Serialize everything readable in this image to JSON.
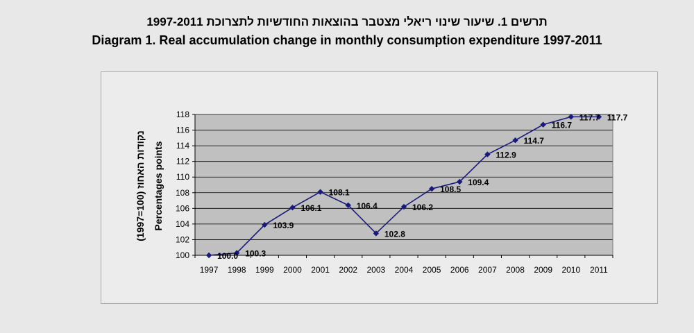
{
  "titles": {
    "hebrew": "תרשים 1. שיעור שינוי ריאלי מצטבר בהוצאות החודשיות לתצרוכת 1997-2011",
    "english": "Diagram 1. Real accumulation change in monthly consumption expenditure 1997-2011"
  },
  "chart_data": {
    "type": "line",
    "title": "Diagram 1. Real accumulation change in monthly consumption expenditure 1997-2011",
    "xlabel": "",
    "ylabel_hebrew": "נקודות האחוז (100=1997)",
    "ylabel": "Percentages points",
    "categories": [
      "1997",
      "1998",
      "1999",
      "2000",
      "2001",
      "2002",
      "2003",
      "2004",
      "2005",
      "2006",
      "2007",
      "2008",
      "2009",
      "2010",
      "2011"
    ],
    "series": [
      {
        "name": "Real accumulation change",
        "values": [
          100.0,
          100.3,
          103.9,
          106.1,
          108.1,
          106.4,
          102.8,
          106.2,
          108.5,
          109.4,
          112.9,
          114.7,
          116.7,
          117.7,
          117.7
        ],
        "labels": [
          "100.0",
          "100.3",
          "103.9",
          "106.1",
          "108.1",
          "106.4",
          "102.8",
          "106.2",
          "108.5",
          "109.4",
          "112.9",
          "114.7",
          "116.7",
          "117.7",
          "117.7"
        ]
      }
    ],
    "ylim": [
      100,
      118
    ],
    "yticks": [
      100,
      102,
      104,
      106,
      108,
      110,
      112,
      114,
      116,
      118
    ],
    "grid": true,
    "colors": {
      "line": "#1a1a7a",
      "marker": "#1a1a7a",
      "plot_bg": "#c0c0c0",
      "grid": "#000000"
    }
  }
}
